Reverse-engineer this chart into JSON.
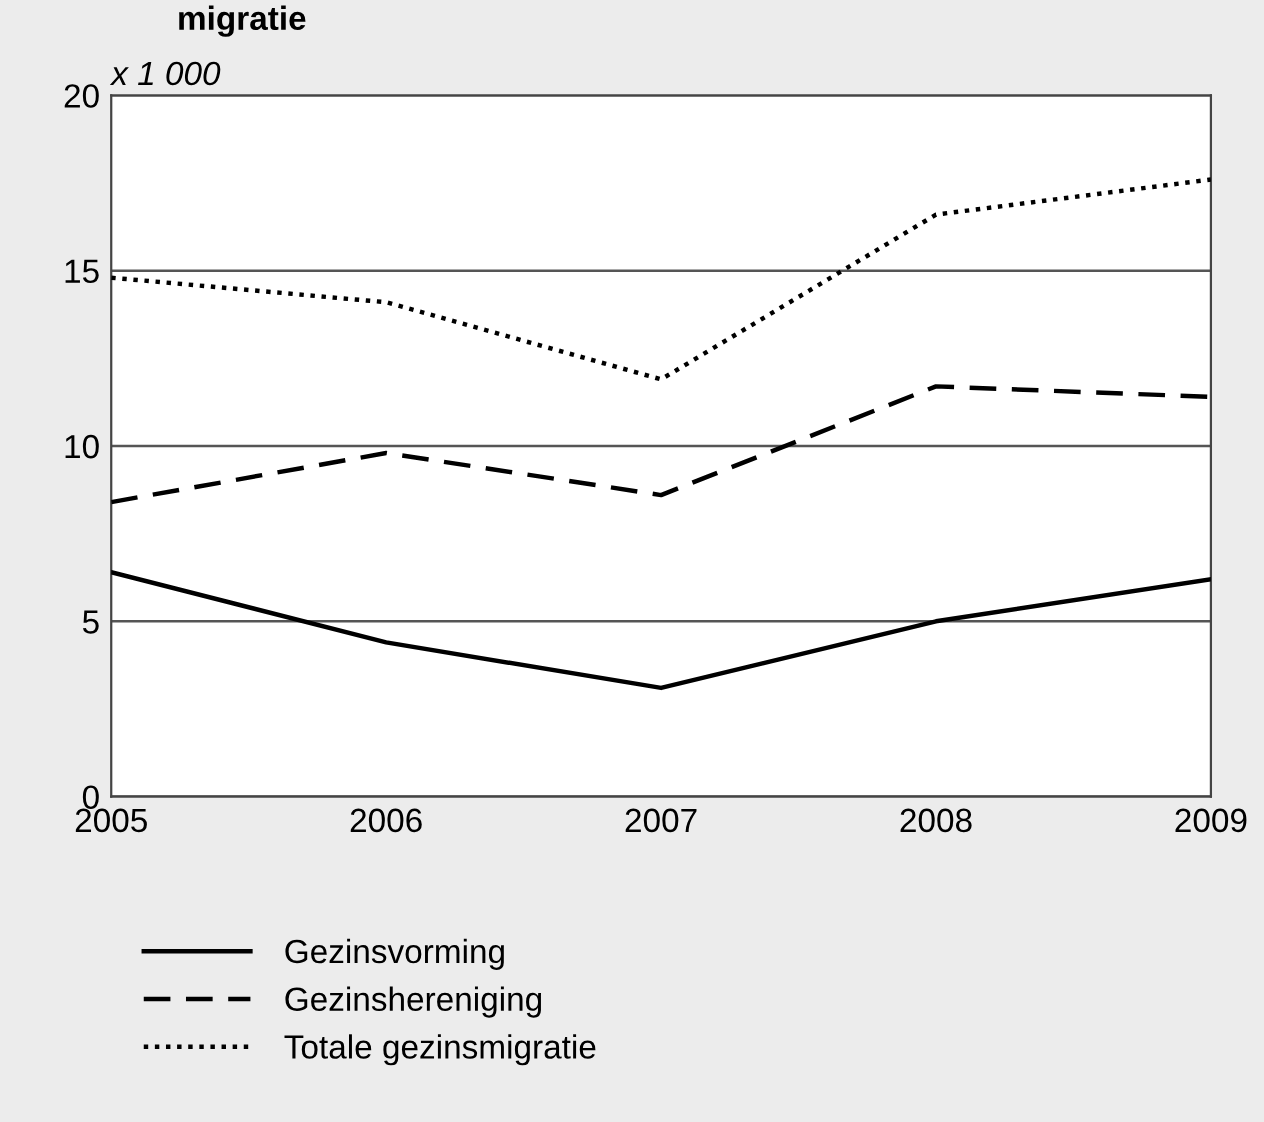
{
  "chart_data": {
    "type": "line",
    "title": "migratie",
    "ylabel": "x 1 000",
    "x": [
      2005,
      2006,
      2007,
      2008,
      2009
    ],
    "series": [
      {
        "name": "Gezinsvorming",
        "color": "#000000",
        "line_style": "solid",
        "values": [
          6.4,
          4.4,
          3.1,
          5.0,
          6.2
        ]
      },
      {
        "name": "Gezinshereniging",
        "color": "#000000",
        "line_style": "dashed",
        "values": [
          8.4,
          9.8,
          8.6,
          11.7,
          11.4
        ]
      },
      {
        "name": "Totale gezinsmigratie",
        "color": "#000000",
        "line_style": "dotted",
        "values": [
          14.8,
          14.1,
          11.9,
          16.6,
          17.6
        ]
      }
    ],
    "xlim": [
      2005,
      2009
    ],
    "ylim": [
      0,
      20
    ],
    "xticks": [
      2005,
      2006,
      2007,
      2008,
      2009
    ],
    "yticks": [
      0,
      5,
      10,
      15,
      20
    ],
    "grid": "y",
    "legend": "bottom",
    "marker": "none"
  }
}
